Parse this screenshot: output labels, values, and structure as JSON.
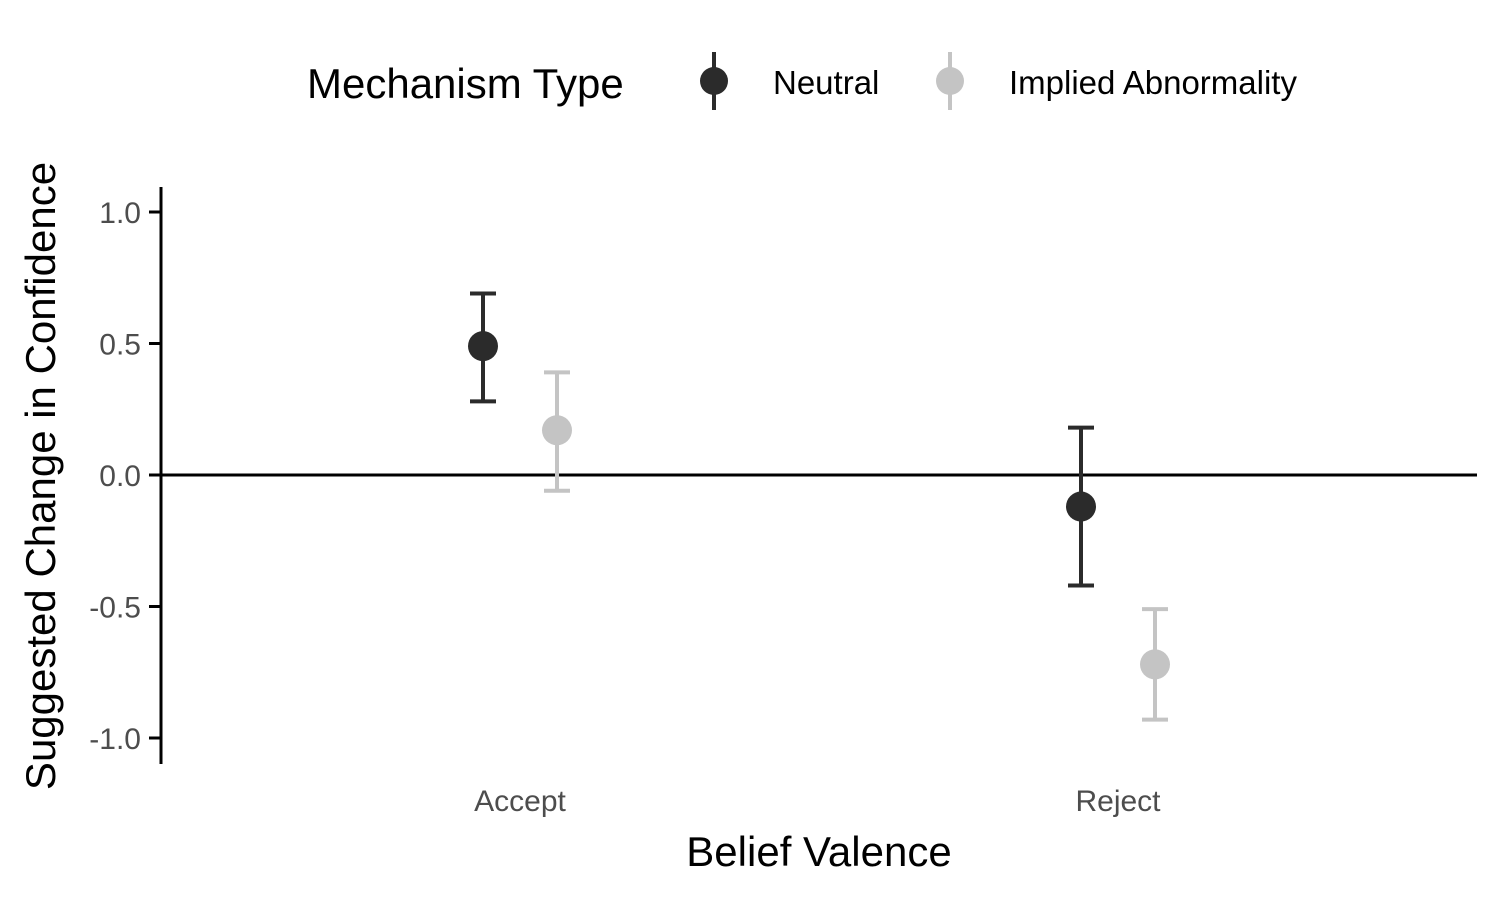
{
  "chart_data": {
    "type": "scatter",
    "variant": "point-with-error-bars",
    "title": "",
    "xlabel": "Belief Valence",
    "ylabel": "Suggested Change in Confidence",
    "categories": [
      "Accept",
      "Reject"
    ],
    "ylim": [
      -1.1,
      1.1
    ],
    "yticks": [
      1.0,
      0.5,
      0.0,
      -0.5,
      -1.0
    ],
    "ytick_labels": [
      "1.0",
      "0.5",
      "0.0",
      "-0.5",
      "-1.0"
    ],
    "reference_line_y": 0,
    "grid": false,
    "legend": {
      "title": "Mechanism Type",
      "placement": "top",
      "entries": [
        "Neutral",
        "Implied Abnormality"
      ]
    },
    "series": [
      {
        "name": "Neutral",
        "color": "#2b2b2b",
        "values": [
          0.49,
          -0.12
        ],
        "lower": [
          0.28,
          -0.42
        ],
        "upper": [
          0.69,
          0.18
        ]
      },
      {
        "name": "Implied Abnormality",
        "color": "#c4c4c4",
        "values": [
          0.17,
          -0.72
        ],
        "lower": [
          -0.06,
          -0.93
        ],
        "upper": [
          0.39,
          -0.51
        ]
      }
    ]
  }
}
